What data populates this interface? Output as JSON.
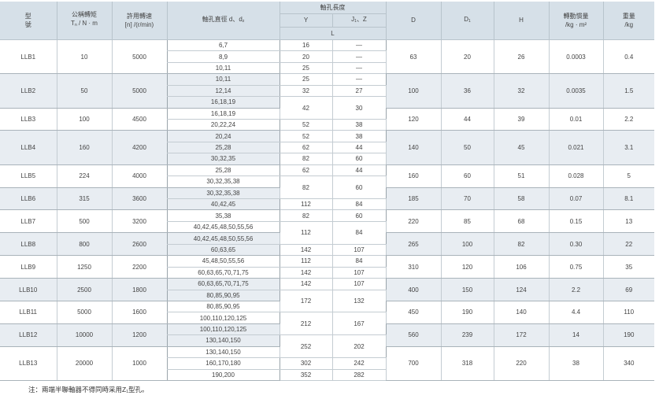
{
  "header": {
    "model": [
      "型",
      "號"
    ],
    "torque": {
      "line1": "公稱轉矩",
      "t": "T",
      "t_sub": "n",
      "unit": " / N · m"
    },
    "speed": {
      "line1": "許用轉速",
      "line2": "[n] /(r/min)"
    },
    "bore_dia": {
      "text": "軸孔直徑 d、d",
      "sub": "z"
    },
    "bore_len": "軸孔長度",
    "y": "Y",
    "j": {
      "text": "J",
      "sub": "1",
      "rest": "、Z"
    },
    "l": "L",
    "D": "D",
    "D1": {
      "text": "D",
      "sub": "1"
    },
    "H": "H",
    "inertia": {
      "line1": "轉動慣量",
      "line2": "/kg · m²"
    },
    "weight": {
      "line1": "重量",
      "line2": "/kg"
    }
  },
  "groups": [
    {
      "model": "LLB1",
      "torque": "10",
      "speed": "5000",
      "D": "63",
      "D1": "20",
      "H": "26",
      "inertia": "0.0003",
      "weight": "0.4",
      "rows": 3
    },
    {
      "model": "LLB2",
      "torque": "50",
      "speed": "5000",
      "D": "100",
      "D1": "36",
      "H": "32",
      "inertia": "0.0035",
      "weight": "1.5",
      "rows": 3
    },
    {
      "model": "LLB3",
      "torque": "100",
      "speed": "4500",
      "D": "120",
      "D1": "44",
      "H": "39",
      "inertia": "0.01",
      "weight": "2.2",
      "rows": 2
    },
    {
      "model": "LLB4",
      "torque": "160",
      "speed": "4200",
      "D": "140",
      "D1": "50",
      "H": "45",
      "inertia": "0.021",
      "weight": "3.1",
      "rows": 3
    },
    {
      "model": "LLB5",
      "torque": "224",
      "speed": "4000",
      "D": "160",
      "D1": "60",
      "H": "51",
      "inertia": "0.028",
      "weight": "5",
      "rows": 2
    },
    {
      "model": "LLB6",
      "torque": "315",
      "speed": "3600",
      "D": "185",
      "D1": "70",
      "H": "58",
      "inertia": "0.07",
      "weight": "8.1",
      "rows": 2
    },
    {
      "model": "LLB7",
      "torque": "500",
      "speed": "3200",
      "D": "220",
      "D1": "85",
      "H": "68",
      "inertia": "0.15",
      "weight": "13",
      "rows": 2
    },
    {
      "model": "LLB8",
      "torque": "800",
      "speed": "2600",
      "D": "265",
      "D1": "100",
      "H": "82",
      "inertia": "0.30",
      "weight": "22",
      "rows": 2
    },
    {
      "model": "LLB9",
      "torque": "1250",
      "speed": "2200",
      "D": "310",
      "D1": "120",
      "H": "106",
      "inertia": "0.75",
      "weight": "35",
      "rows": 2
    },
    {
      "model": "LLB10",
      "torque": "2500",
      "speed": "1800",
      "D": "400",
      "D1": "150",
      "H": "124",
      "inertia": "2.2",
      "weight": "69",
      "rows": 2
    },
    {
      "model": "LLB11",
      "torque": "5000",
      "speed": "1600",
      "D": "450",
      "D1": "190",
      "H": "140",
      "inertia": "4.4",
      "weight": "110",
      "rows": 2
    },
    {
      "model": "LLB12",
      "torque": "10000",
      "speed": "1200",
      "D": "560",
      "D1": "239",
      "H": "172",
      "inertia": "14",
      "weight": "190",
      "rows": 2
    },
    {
      "model": "LLB13",
      "torque": "20000",
      "speed": "1000",
      "D": "700",
      "D1": "318",
      "H": "220",
      "inertia": "38",
      "weight": "340",
      "rows": 3
    }
  ],
  "bore_diameters": [
    "6,7",
    "8,9",
    "10,11",
    "10,11",
    "12,14",
    "16,18,19",
    "16,18,19",
    "20,22,24",
    "20,24",
    "25,28",
    "30,32,35",
    "25,28",
    "30,32,35,38",
    "30,32,35,38",
    "40,42,45",
    "35,38",
    "40,42,45,48,50,55,56",
    "40,42,45,48,50,55,56",
    "60,63,65",
    "45,48,50,55,56",
    "60,63,65,70,71,75",
    "60,63,65,70,71,75",
    "80,85,90,95",
    "80,85,90,95",
    "100,110,120,125",
    "100,110,120,125",
    "130,140,150",
    "130,140,150",
    "160,170,180",
    "190,200"
  ],
  "bore_lengths": [
    {
      "y": "16",
      "j": "—",
      "span": 1
    },
    {
      "y": "20",
      "j": "—",
      "span": 1
    },
    {
      "y": "25",
      "j": "—",
      "span": 1
    },
    {
      "y": "25",
      "j": "—",
      "span": 1
    },
    {
      "y": "32",
      "j": "27",
      "span": 1
    },
    {
      "y": "42",
      "j": "30",
      "span": 2
    },
    {
      "y": "52",
      "j": "38",
      "span": 1
    },
    {
      "y": "52",
      "j": "38",
      "span": 1
    },
    {
      "y": "62",
      "j": "44",
      "span": 1
    },
    {
      "y": "82",
      "j": "60",
      "span": 1
    },
    {
      "y": "62",
      "j": "44",
      "span": 1
    },
    {
      "y": "82",
      "j": "60",
      "span": 2
    },
    {
      "y": "112",
      "j": "84",
      "span": 1
    },
    {
      "y": "82",
      "j": "60",
      "span": 1
    },
    {
      "y": "112",
      "j": "84",
      "span": 2
    },
    {
      "y": "142",
      "j": "107",
      "span": 1
    },
    {
      "y": "112",
      "j": "84",
      "span": 1
    },
    {
      "y": "142",
      "j": "107",
      "span": 1
    },
    {
      "y": "142",
      "j": "107",
      "span": 1
    },
    {
      "y": "172",
      "j": "132",
      "span": 2
    },
    {
      "y": "212",
      "j": "167",
      "span": 2
    },
    {
      "y": "252",
      "j": "202",
      "span": 2
    },
    {
      "y": "302",
      "j": "242",
      "span": 1
    },
    {
      "y": "352",
      "j": "282",
      "span": 1
    }
  ],
  "note": {
    "text": "注：兩端半聯軸器不得同時采用Z",
    "sub": "1",
    "rest": "型孔。"
  },
  "colors": {
    "header_bg": "#d6e0e8",
    "shade_bg": "#e8edf2",
    "text": "#444444"
  }
}
